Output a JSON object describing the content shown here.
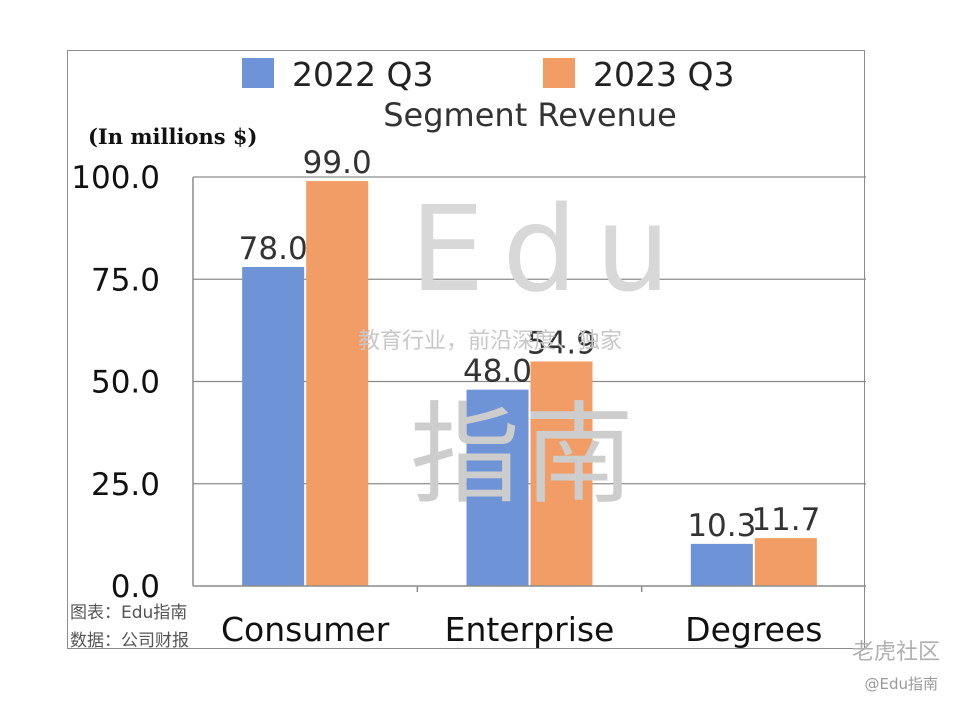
{
  "chart_data": {
    "type": "bar",
    "title": "Segment Revenue",
    "unit_label": "(In millions $)",
    "categories": [
      "Consumer",
      "Enterprise",
      "Degrees"
    ],
    "series": [
      {
        "name": "2022 Q3",
        "values": [
          78.0,
          48.0,
          10.3
        ],
        "color": "#6e93d6"
      },
      {
        "name": "2023 Q3",
        "values": [
          99.0,
          54.9,
          11.7
        ],
        "color": "#f29d65"
      }
    ],
    "data_labels": [
      [
        "78.0",
        "48.0",
        "10.3"
      ],
      [
        "99.0",
        "54.9",
        "11.7"
      ]
    ],
    "ylim": [
      0,
      100
    ],
    "yticks": [
      "0.0",
      "25.0",
      "50.0",
      "75.0",
      "100.0"
    ],
    "ytick_values": [
      0,
      25,
      50,
      75,
      100
    ],
    "grid": true,
    "legend_position": "top"
  },
  "source": {
    "chart_by": "图表：Edu指南",
    "data_from": "数据：公司财报"
  },
  "watermark": {
    "brand": "Edu",
    "slogan": "教育行业，前沿深度、独家",
    "brand_cn": "指南"
  },
  "corner": {
    "brand": "老虎社区",
    "handle": "@Edu指南"
  }
}
